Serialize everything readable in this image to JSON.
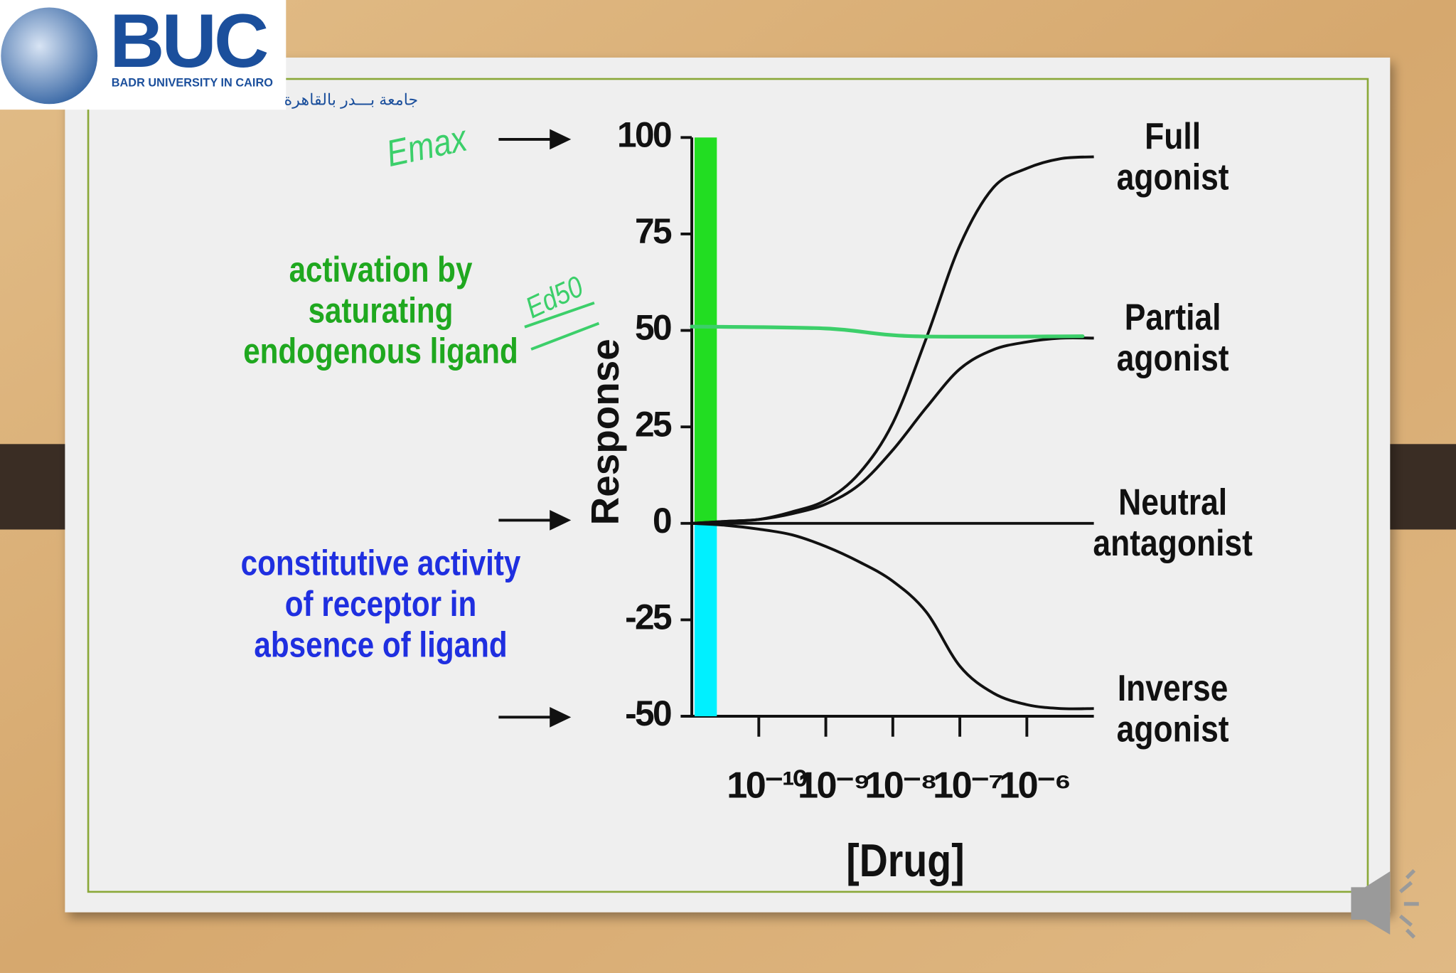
{
  "logo": {
    "name": "BUC",
    "subtitle": "BADR UNIVERSITY IN CAIRO",
    "arabic": "جامعة بـــدر بالقاهرة"
  },
  "chart_data": {
    "type": "line",
    "x_label": "[Drug]",
    "y_label": "Response",
    "x_scale": "log",
    "xlim": [
      1e-11,
      1e-05
    ],
    "xticks": [
      {
        "value": 1e-10,
        "label": "10⁻¹⁰"
      },
      {
        "value": 1e-09,
        "label": "10⁻⁹"
      },
      {
        "value": 1e-08,
        "label": "10⁻⁸"
      },
      {
        "value": 1e-07,
        "label": "10⁻⁷"
      },
      {
        "value": 1e-06,
        "label": "10⁻⁶"
      }
    ],
    "ylim": [
      -50,
      100
    ],
    "yticks": [
      -50,
      -25,
      0,
      25,
      50,
      75,
      100
    ],
    "x": [
      1e-11,
      3.162e-11,
      1e-10,
      3.162e-10,
      1e-09,
      3.162e-09,
      1e-08,
      3.162e-08,
      1e-07,
      3.162e-07,
      1e-06,
      3.162e-06,
      1e-05
    ],
    "series": [
      {
        "name": "Full agonist",
        "color": "#111111",
        "values": [
          0,
          0.5,
          1,
          3,
          6,
          13,
          26,
          48,
          72,
          87,
          92,
          94.5,
          95
        ]
      },
      {
        "name": "Partial agonist",
        "color": "#111111",
        "values": [
          0,
          0.5,
          1,
          2.5,
          5,
          10,
          19,
          30,
          40,
          45,
          47,
          48,
          48
        ]
      },
      {
        "name": "Neutral antagonist",
        "color": "#111111",
        "values": [
          0,
          0,
          0,
          0,
          0,
          0,
          0,
          0,
          0,
          0,
          0,
          0,
          0
        ]
      },
      {
        "name": "Inverse agonist",
        "color": "#111111",
        "values": [
          0,
          -0.5,
          -1.5,
          -3,
          -6,
          -10,
          -15,
          -23,
          -37,
          -44,
          -47,
          -48,
          -48
        ]
      }
    ],
    "bands": [
      {
        "from": 0,
        "to": 100,
        "color": "#22dd22"
      },
      {
        "from": 0,
        "to": -50,
        "color": "#00f0ff"
      }
    ],
    "ed50_line": {
      "x": [
        1e-11,
        1e-09,
        2e-08,
        6.8e-06
      ],
      "values": [
        51,
        50.5,
        48.5,
        48.5
      ],
      "color": "#3ccf6a"
    },
    "annotations": [
      {
        "lines": [
          "Emax"
        ],
        "color": "#3ccf6a"
      },
      {
        "lines": [
          "activation by",
          "saturating",
          "endogenous ligand"
        ],
        "color": "#1fa81f"
      },
      {
        "lines": [
          "constitutive activity",
          "of receptor in",
          "absence of ligand"
        ],
        "color": "#1f2fe0"
      },
      {
        "lines": [
          "Ed50"
        ],
        "color": "#3ccf6a"
      }
    ]
  }
}
